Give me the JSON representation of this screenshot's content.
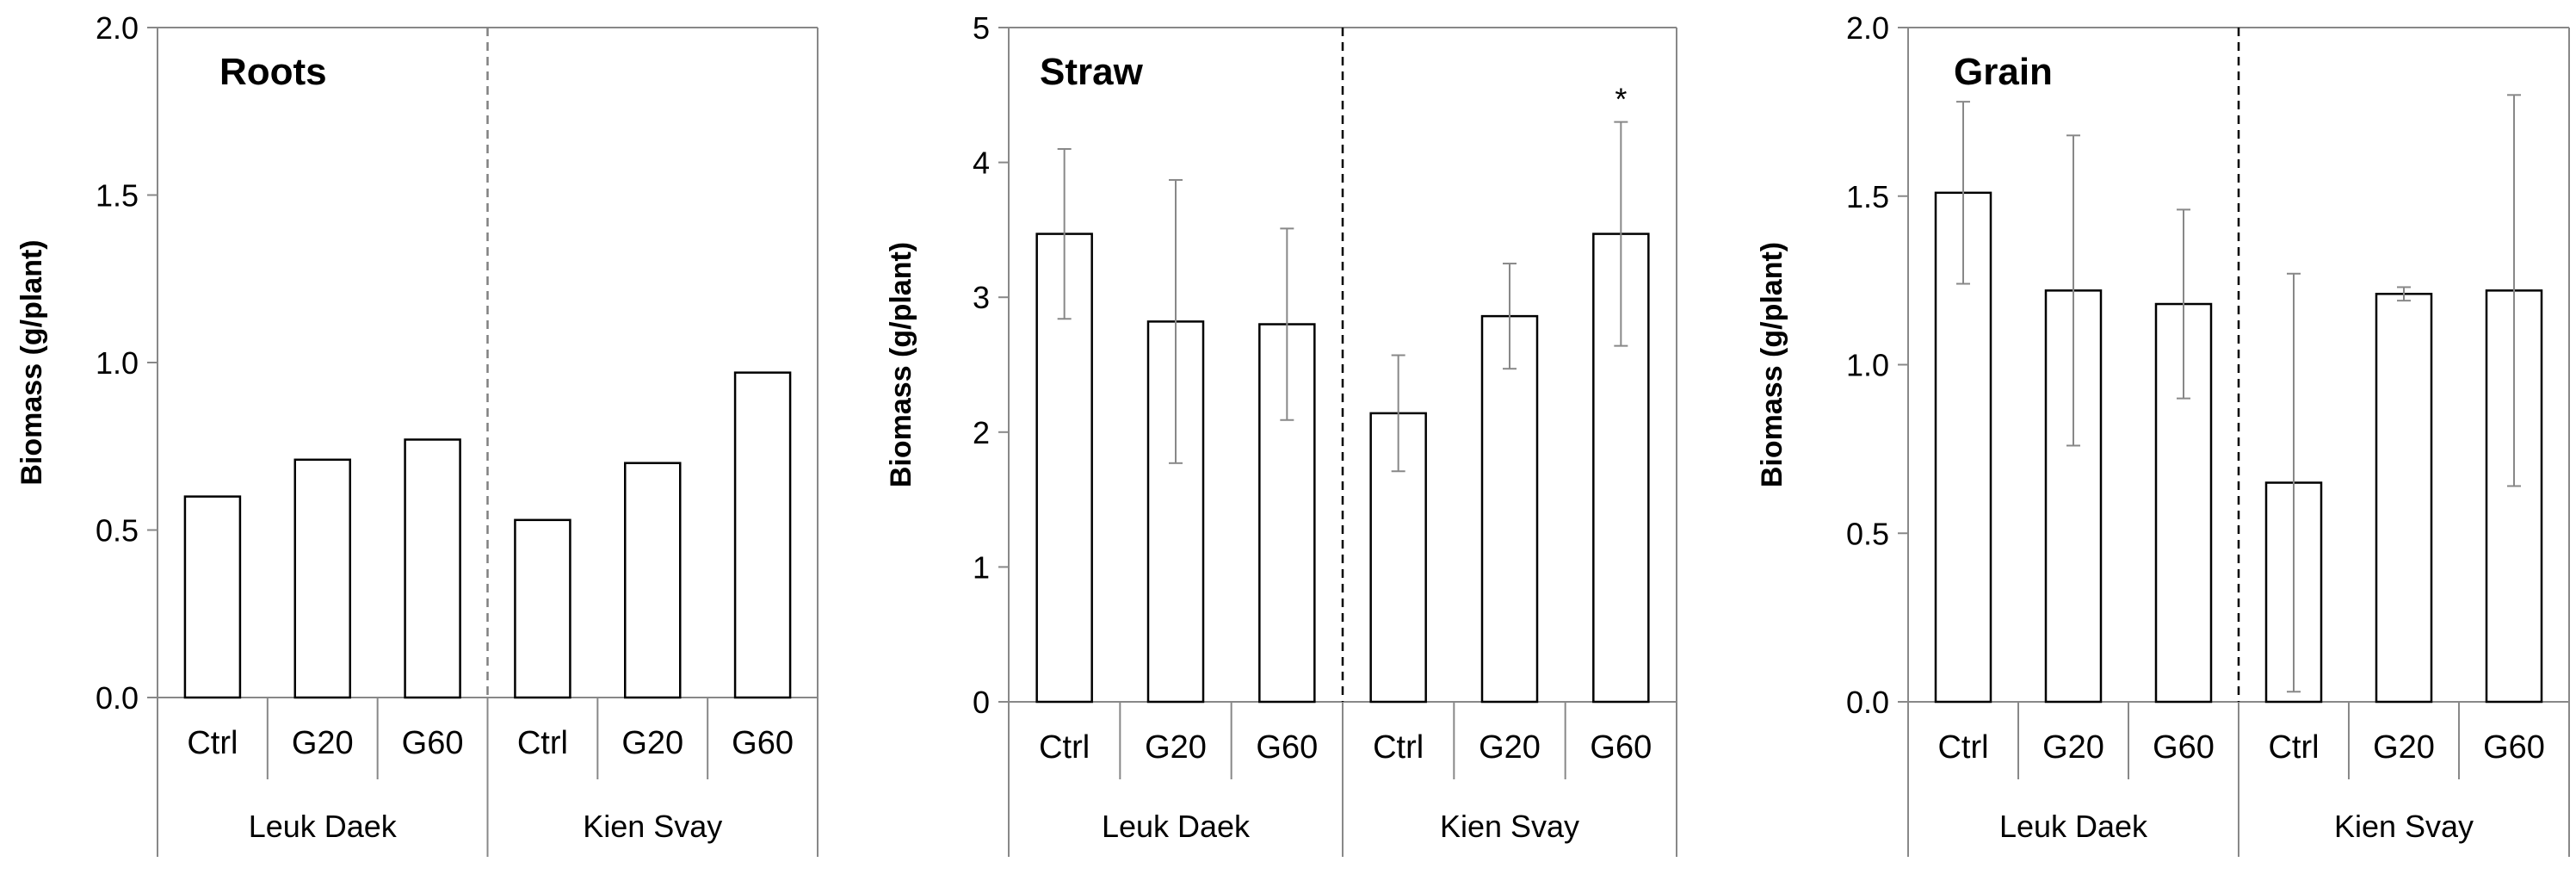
{
  "chart_data": [
    {
      "type": "bar",
      "title": "Roots",
      "ylabel": "Biomass (g/plant)",
      "ylim": [
        0,
        2.0
      ],
      "yticks": [
        "0.0",
        "0.5",
        "1.0",
        "1.5",
        "2.0"
      ],
      "grid": false,
      "groups": [
        {
          "name": "Leuk Daek",
          "categories": [
            "Ctrl",
            "G20",
            "G60"
          ],
          "values": [
            0.6,
            0.71,
            0.77
          ],
          "errors": [
            null,
            null,
            null
          ]
        },
        {
          "name": "Kien Svay",
          "categories": [
            "Ctrl",
            "G20",
            "G60"
          ],
          "values": [
            0.53,
            0.7,
            0.97
          ],
          "errors": [
            null,
            null,
            null
          ]
        }
      ],
      "annotations": []
    },
    {
      "type": "bar",
      "title": "Straw",
      "ylabel": "Biomass (g/plant)",
      "ylim": [
        0,
        5
      ],
      "yticks": [
        "0",
        "1",
        "2",
        "3",
        "4",
        "5"
      ],
      "grid": false,
      "groups": [
        {
          "name": "Leuk Daek",
          "categories": [
            "Ctrl",
            "G20",
            "G60"
          ],
          "values": [
            3.47,
            2.82,
            2.8
          ],
          "errors": [
            0.63,
            1.05,
            0.71
          ]
        },
        {
          "name": "Kien Svay",
          "categories": [
            "Ctrl",
            "G20",
            "G60"
          ],
          "values": [
            2.14,
            2.86,
            3.47
          ],
          "errors": [
            0.43,
            0.39,
            0.83
          ]
        }
      ],
      "annotations": [
        {
          "text": "*",
          "group": 1,
          "index": 2
        }
      ]
    },
    {
      "type": "bar",
      "title": "Grain",
      "ylabel": "Biomass (g/plant)",
      "ylim": [
        0,
        2.0
      ],
      "yticks": [
        "0.0",
        "0.5",
        "1.0",
        "1.5",
        "2.0"
      ],
      "grid": false,
      "groups": [
        {
          "name": "Leuk Daek",
          "categories": [
            "Ctrl",
            "G20",
            "G60"
          ],
          "values": [
            1.51,
            1.22,
            1.18
          ],
          "errors": [
            0.27,
            0.46,
            0.28
          ]
        },
        {
          "name": "Kien Svay",
          "categories": [
            "Ctrl",
            "G20",
            "G60"
          ],
          "values": [
            0.65,
            1.21,
            1.22
          ],
          "errors": [
            0.62,
            0.02,
            0.58
          ]
        }
      ],
      "annotations": []
    }
  ]
}
